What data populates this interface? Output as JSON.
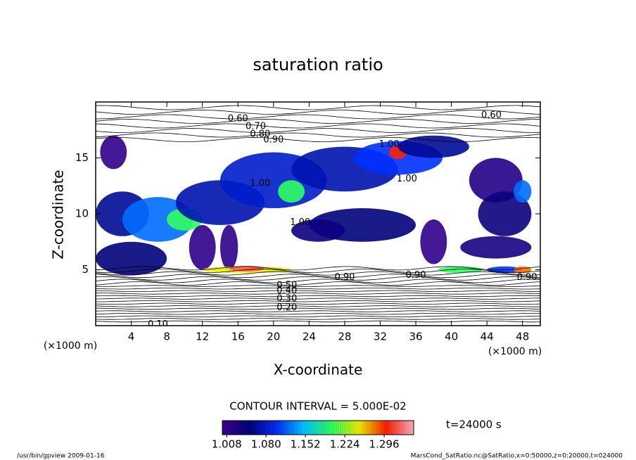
{
  "chart_data": {
    "type": "contour",
    "title": "saturation ratio",
    "x_label": "X-coordinate",
    "y_label": "Z-coordinate",
    "x_unit": "(×1000 m)",
    "y_unit": "(×1000 m)",
    "xlim": [
      0,
      50
    ],
    "ylim": [
      0,
      20
    ],
    "xticks": [
      4,
      8,
      12,
      16,
      20,
      24,
      28,
      32,
      36,
      40,
      44,
      48
    ],
    "yticks": [
      5,
      10,
      15
    ],
    "contour_interval": "CONTOUR INTERVAL = 5.000E-02",
    "time_label": "t=24000 s",
    "footer_left": "/usr/bin/gpview  2009-01-16",
    "footer_right": "MarsCond_SatRatio.nc@SatRatio,x=0:50000,z=0:20000,t=024000",
    "colormap": [
      "#3c0090",
      "#00007a",
      "#0030ff",
      "#00c8ff",
      "#30ff60",
      "#f0f000",
      "#ff2000",
      "#ffb0c8"
    ],
    "clim": [
      1.0,
      1.35
    ],
    "colorbar_ticks": [
      {
        "value": 1.008,
        "label": "1.008"
      },
      {
        "value": 1.08,
        "label": "1.080"
      },
      {
        "value": 1.152,
        "label": "1.152"
      },
      {
        "value": 1.224,
        "label": "1.224"
      },
      {
        "value": 1.296,
        "label": "1.296"
      }
    ],
    "regions": {
      "x": [
        3,
        7,
        10,
        14,
        20,
        22,
        28,
        34,
        34,
        38,
        30,
        25,
        4,
        2,
        12,
        15,
        38,
        45,
        46,
        45,
        48,
        17,
        17,
        41,
        46,
        48
      ],
      "y": [
        10,
        9.5,
        9.5,
        11,
        13,
        12,
        14,
        15,
        15.5,
        16,
        9,
        8.5,
        6,
        15.5,
        7,
        7,
        7.5,
        13,
        10,
        7,
        12,
        5,
        5.1,
        5,
        5,
        5
      ],
      "rx": [
        3,
        4,
        2,
        5,
        6,
        1.5,
        6,
        5,
        1,
        4,
        6,
        3,
        4,
        1.5,
        1.5,
        1,
        1.5,
        3,
        3,
        4,
        1,
        5,
        2,
        2.5,
        2,
        1
      ],
      "ry": [
        2,
        2,
        1,
        2,
        2.5,
        1,
        2,
        1.5,
        0.6,
        1,
        1.5,
        1,
        1.5,
        1.5,
        2,
        2,
        2,
        2,
        2,
        1,
        1,
        0.3,
        0.25,
        0.3,
        0.3,
        0.3
      ],
      "values": [
        1.06,
        1.12,
        1.2,
        1.07,
        1.08,
        1.2,
        1.07,
        1.1,
        1.3,
        1.06,
        1.05,
        1.04,
        1.05,
        1.01,
        1.01,
        1.01,
        1.01,
        1.02,
        1.04,
        1.03,
        1.12,
        1.25,
        1.32,
        1.2,
        1.1,
        1.28
      ]
    },
    "contour_labels": [
      {
        "label": "0.60",
        "x": 16,
        "y": 18.5
      },
      {
        "label": "0.60",
        "x": 44.5,
        "y": 18.8
      },
      {
        "label": "0.70",
        "x": 18,
        "y": 17.8
      },
      {
        "label": "0.80",
        "x": 18.5,
        "y": 17.1
      },
      {
        "label": "0.90",
        "x": 20,
        "y": 16.6
      },
      {
        "label": "1.00",
        "x": 33,
        "y": 16.2
      },
      {
        "label": "1.00",
        "x": 18.5,
        "y": 12.7
      },
      {
        "label": "1.00",
        "x": 35,
        "y": 13.1
      },
      {
        "label": "1.00",
        "x": 23,
        "y": 9.2
      },
      {
        "label": "0.90",
        "x": 28,
        "y": 4.3
      },
      {
        "label": "0.90",
        "x": 36,
        "y": 4.5
      },
      {
        "label": "0.90",
        "x": 48.5,
        "y": 4.3
      },
      {
        "label": "0.50",
        "x": 21.5,
        "y": 3.6
      },
      {
        "label": "0.40",
        "x": 21.5,
        "y": 3.1
      },
      {
        "label": "0.30",
        "x": 21.5,
        "y": 2.4
      },
      {
        "label": "0.20",
        "x": 21.5,
        "y": 1.6
      },
      {
        "label": "0.10",
        "x": 7,
        "y": 0.1
      }
    ]
  }
}
